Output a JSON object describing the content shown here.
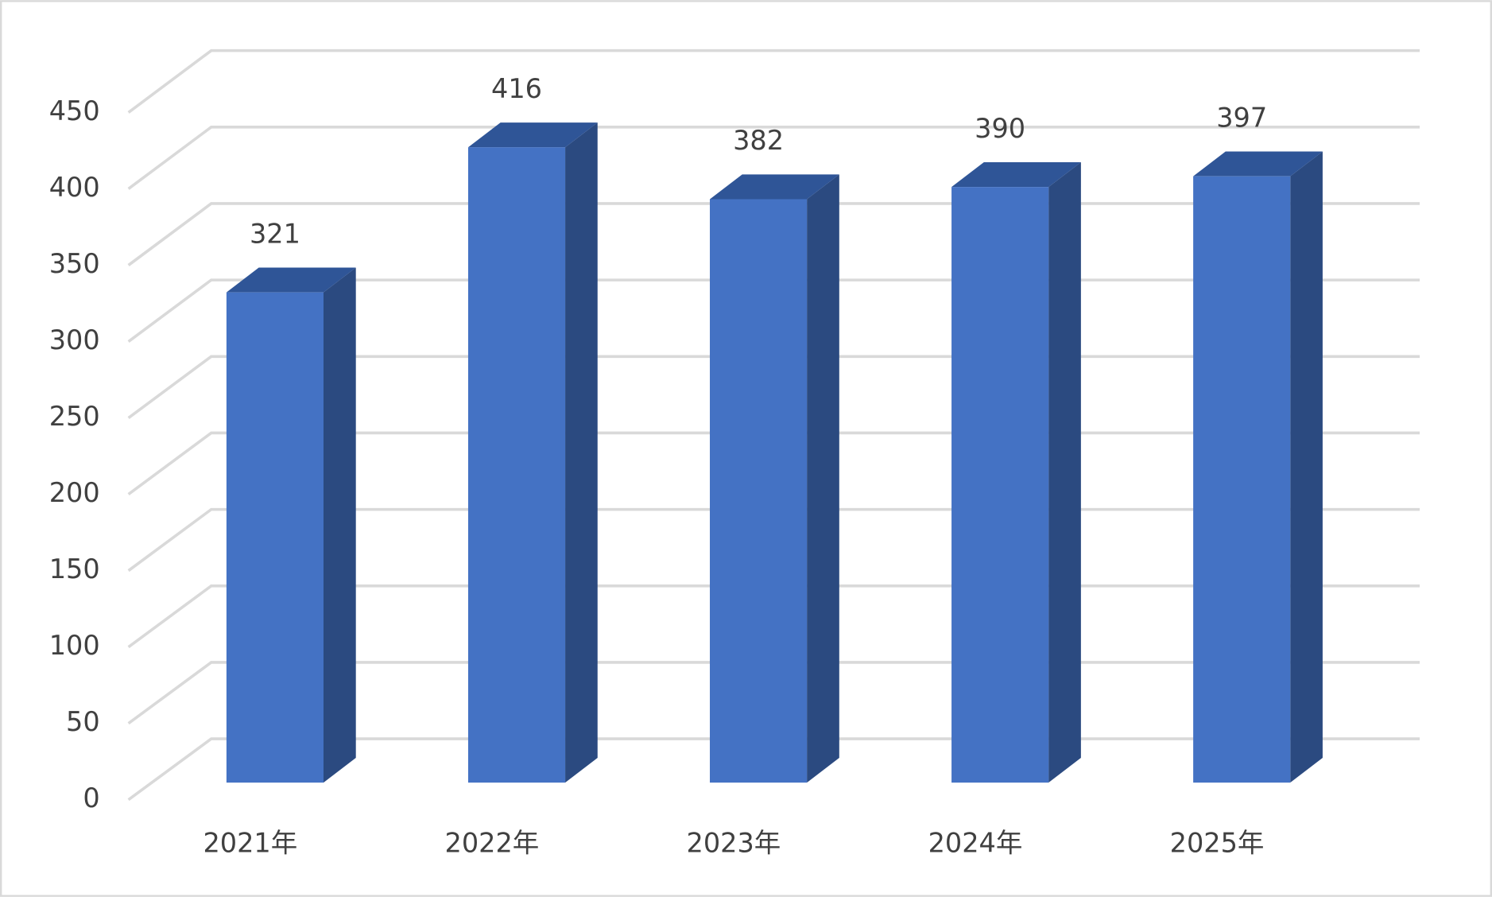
{
  "chart_data": {
    "type": "bar3d",
    "categories": [
      "2021年",
      "2022年",
      "2023年",
      "2024年",
      "2025年"
    ],
    "values": [
      321,
      416,
      382,
      390,
      397
    ],
    "color": "#4472c4",
    "side_color": "#2b4a80",
    "top_color": "#2f5597",
    "ylim": [
      0,
      450
    ],
    "yticks": [
      0,
      50,
      100,
      150,
      200,
      250,
      300,
      350,
      400,
      450
    ],
    "grid": true
  }
}
